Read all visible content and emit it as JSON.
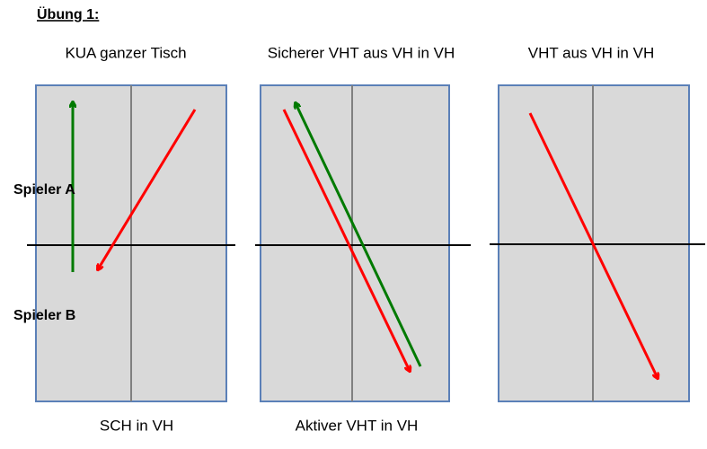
{
  "header": {
    "title": "Übung 1:"
  },
  "players": {
    "a": "Spieler A",
    "b": "Spieler B"
  },
  "panels": [
    {
      "title": "KUA ganzer Tisch",
      "caption": "SCH in VH"
    },
    {
      "title": "Sicherer VHT aus VH in VH",
      "caption": "Aktiver VHT in VH"
    },
    {
      "title": "VHT aus VH in VH"
    }
  ]
}
